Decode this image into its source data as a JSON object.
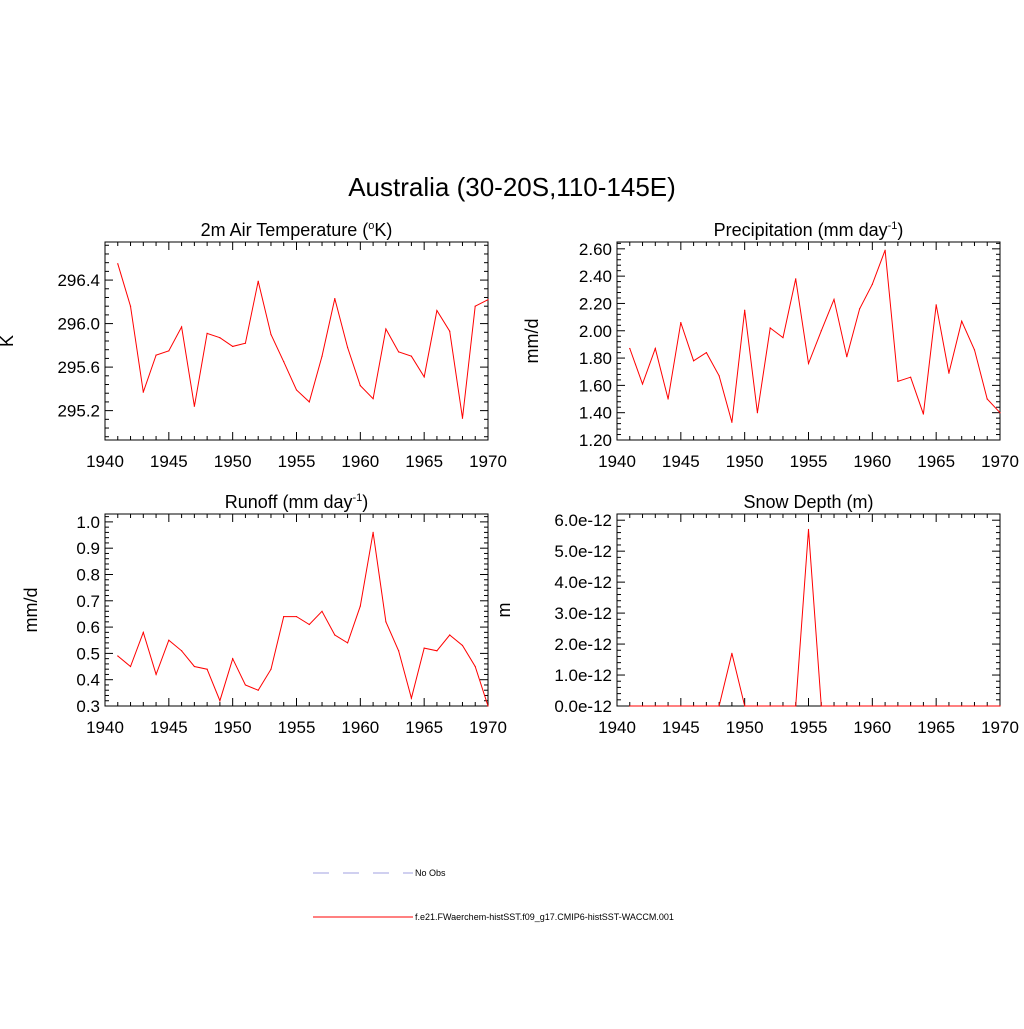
{
  "title": "Australia (30-20S,110-145E)",
  "chart_data": [
    {
      "type": "line",
      "title": "2m Air Temperature (",
      "title_sup": "o",
      "title_end": "K)",
      "ylabel": "K",
      "xlim": [
        1940,
        1970
      ],
      "ylim": [
        294.93,
        296.75
      ],
      "xticks": [
        "1940",
        "1945",
        "1950",
        "1955",
        "1960",
        "1965",
        "1970"
      ],
      "yticks": [
        "295.2",
        "295.6",
        "296.0",
        "296.4"
      ],
      "ytick_values": [
        295.2,
        295.6,
        296.0,
        296.4
      ],
      "x": [
        1941,
        1942,
        1943,
        1944,
        1945,
        1946,
        1947,
        1948,
        1949,
        1950,
        1951,
        1952,
        1953,
        1954,
        1955,
        1956,
        1957,
        1958,
        1959,
        1960,
        1961,
        1962,
        1963,
        1964,
        1965,
        1966,
        1967,
        1968,
        1969,
        1970
      ],
      "series": [
        {
          "values": [
            296.55,
            296.16,
            295.37,
            295.71,
            295.75,
            295.97,
            295.24,
            295.91,
            295.87,
            295.79,
            295.82,
            296.39,
            295.9,
            295.65,
            295.39,
            295.28,
            295.7,
            296.23,
            295.78,
            295.43,
            295.31,
            295.95,
            295.74,
            295.7,
            295.51,
            296.12,
            295.93,
            295.13,
            296.16,
            296.22
          ],
          "color": "#ff0000"
        }
      ]
    },
    {
      "type": "line",
      "title": "Precipitation (mm day",
      "title_sup": "-1",
      "title_end": ")",
      "ylabel": "mm/d",
      "xlim": [
        1940,
        1970
      ],
      "ylim": [
        1.2,
        2.65
      ],
      "xticks": [
        "1940",
        "1945",
        "1950",
        "1955",
        "1960",
        "1965",
        "1970"
      ],
      "yticks": [
        "1.20",
        "1.40",
        "1.60",
        "1.80",
        "2.00",
        "2.20",
        "2.40",
        "2.60"
      ],
      "ytick_values": [
        1.2,
        1.4,
        1.6,
        1.8,
        2.0,
        2.2,
        2.4,
        2.6
      ],
      "x": [
        1941,
        1942,
        1943,
        1944,
        1945,
        1946,
        1947,
        1948,
        1949,
        1950,
        1951,
        1952,
        1953,
        1954,
        1955,
        1956,
        1957,
        1958,
        1959,
        1960,
        1961,
        1962,
        1963,
        1964,
        1965,
        1966,
        1967,
        1968,
        1969,
        1970
      ],
      "series": [
        {
          "values": [
            1.87,
            1.61,
            1.87,
            1.5,
            2.06,
            1.78,
            1.84,
            1.67,
            1.33,
            2.15,
            1.4,
            2.02,
            1.95,
            2.38,
            1.76,
            2.0,
            2.23,
            1.81,
            2.16,
            2.34,
            2.59,
            1.63,
            1.66,
            1.39,
            2.19,
            1.69,
            2.07,
            1.86,
            1.5,
            1.4
          ],
          "color": "#ff0000"
        }
      ]
    },
    {
      "type": "line",
      "title": "Runoff (mm day",
      "title_sup": "-1",
      "title_end": ")",
      "ylabel": "mm/d",
      "xlim": [
        1940,
        1970
      ],
      "ylim": [
        0.3,
        1.03
      ],
      "xticks": [
        "1940",
        "1945",
        "1950",
        "1955",
        "1960",
        "1965",
        "1970"
      ],
      "yticks": [
        "0.3",
        "0.4",
        "0.5",
        "0.6",
        "0.7",
        "0.8",
        "0.9",
        "1.0"
      ],
      "ytick_values": [
        0.3,
        0.4,
        0.5,
        0.6,
        0.7,
        0.8,
        0.9,
        1.0
      ],
      "x": [
        1941,
        1942,
        1943,
        1944,
        1945,
        1946,
        1947,
        1948,
        1949,
        1950,
        1951,
        1952,
        1953,
        1954,
        1955,
        1956,
        1957,
        1958,
        1959,
        1960,
        1961,
        1962,
        1963,
        1964,
        1965,
        1966,
        1967,
        1968,
        1969,
        1970
      ],
      "series": [
        {
          "values": [
            0.49,
            0.45,
            0.58,
            0.42,
            0.55,
            0.51,
            0.45,
            0.44,
            0.32,
            0.48,
            0.38,
            0.36,
            0.44,
            0.64,
            0.64,
            0.61,
            0.66,
            0.57,
            0.54,
            0.68,
            0.96,
            0.62,
            0.51,
            0.33,
            0.52,
            0.51,
            0.57,
            0.53,
            0.45,
            0.3
          ],
          "color": "#ff0000"
        }
      ]
    },
    {
      "type": "line",
      "title": "Snow Depth (m)",
      "title_sup": "",
      "title_end": "",
      "ylabel": "m",
      "xlim": [
        1940,
        1970
      ],
      "ylim": [
        0,
        6.2e-12
      ],
      "xticks": [
        "1940",
        "1945",
        "1950",
        "1955",
        "1960",
        "1965",
        "1970"
      ],
      "yticks": [
        "0.0e-12",
        "1.0e-12",
        "2.0e-12",
        "3.0e-12",
        "4.0e-12",
        "5.0e-12",
        "6.0e-12"
      ],
      "ytick_values": [
        0,
        1e-12,
        2e-12,
        3e-12,
        4e-12,
        5e-12,
        6e-12
      ],
      "x": [
        1941,
        1942,
        1943,
        1944,
        1945,
        1946,
        1947,
        1948,
        1949,
        1950,
        1951,
        1952,
        1953,
        1954,
        1955,
        1956,
        1957,
        1958,
        1959,
        1960,
        1961,
        1962,
        1963,
        1964,
        1965,
        1966,
        1967,
        1968,
        1969,
        1970
      ],
      "series": [
        {
          "values": [
            0,
            0,
            0,
            0,
            0,
            0,
            0,
            0,
            1.7e-12,
            0,
            0,
            0,
            0,
            0,
            5.7e-12,
            0,
            0,
            0,
            0,
            0,
            0,
            0,
            0,
            0,
            0,
            0,
            0,
            0,
            0,
            0
          ],
          "color": "#ff0000"
        }
      ]
    }
  ],
  "legend": [
    {
      "label": "No Obs",
      "color": "#a0a0e0",
      "style": "dashed"
    },
    {
      "label": "f.e21.FWaerchem-histSST.f09_g17.CMIP6-histSST-WACCM.001",
      "color": "#ff0000",
      "style": "solid"
    }
  ]
}
